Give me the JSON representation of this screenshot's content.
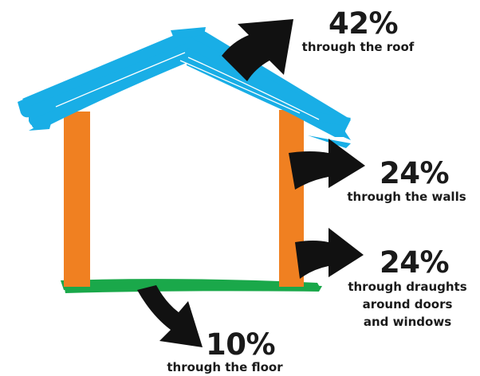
{
  "colors": {
    "roof": "#19aee6",
    "walls": "#f08021",
    "floor": "#1aa84a",
    "arrows": "#111111",
    "text": "#1a1a1a"
  },
  "labels": {
    "roof": {
      "value": "42%",
      "caption": "through the roof"
    },
    "walls": {
      "value": "24%",
      "caption": "through the walls"
    },
    "draughts": {
      "value": "24%",
      "caption_lines": [
        "through draughts",
        "around doors",
        "and windows"
      ]
    },
    "floor": {
      "value": "10%",
      "caption": "through the floor"
    }
  }
}
